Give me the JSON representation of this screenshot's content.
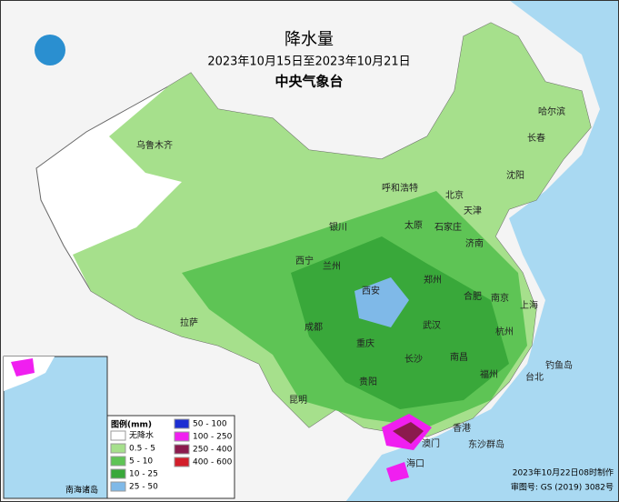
{
  "header": {
    "title": "降水量",
    "period": "2023年10月15日至2023年10月21日",
    "agency": "中央气象台"
  },
  "legend": {
    "title": "图例(mm)",
    "items": [
      {
        "label": "无降水",
        "color": "#ffffff"
      },
      {
        "label": "0.5 - 5",
        "color": "#a6e08c"
      },
      {
        "label": "5 - 10",
        "color": "#5ec455"
      },
      {
        "label": "10 - 25",
        "color": "#39a83a"
      },
      {
        "label": "25 - 50",
        "color": "#7fb9e8"
      },
      {
        "label": "50 - 100",
        "color": "#1c2ed2"
      },
      {
        "label": "100 - 250",
        "color": "#f01ff0"
      },
      {
        "label": "250 - 400",
        "color": "#8b1b4d"
      },
      {
        "label": "400 - 600",
        "color": "#d21e2a"
      }
    ]
  },
  "cities": [
    "乌鲁木齐",
    "哈尔滨",
    "长春",
    "沈阳",
    "呼和浩特",
    "北京",
    "天津",
    "石家庄",
    "太原",
    "济南",
    "银川",
    "兰州",
    "西宁",
    "郑州",
    "西安",
    "合肥",
    "南京",
    "上海",
    "拉萨",
    "成都",
    "武汉",
    "重庆",
    "杭州",
    "长沙",
    "南昌",
    "贵阳",
    "福州",
    "台北",
    "昆明",
    "香港",
    "澳门",
    "海口",
    "东沙群岛",
    "钓鱼岛"
  ],
  "inset": {
    "label": "南海诸岛"
  },
  "footer": {
    "made": "2023年10月22日08时制作",
    "approval": "审图号: GS (2019) 3082号"
  }
}
